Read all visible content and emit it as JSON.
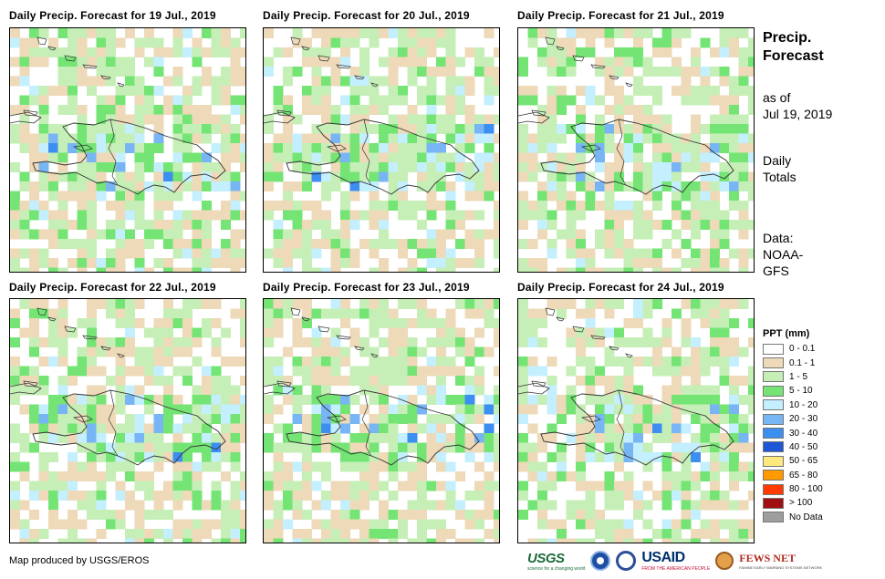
{
  "panels": [
    {
      "title": "Daily Precip. Forecast for 19 Jul., 2019"
    },
    {
      "title": "Daily Precip. Forecast for 20 Jul., 2019"
    },
    {
      "title": "Daily Precip. Forecast for 21 Jul., 2019"
    },
    {
      "title": "Daily Precip. Forecast for 22 Jul., 2019"
    },
    {
      "title": "Daily Precip. Forecast for 23 Jul., 2019"
    },
    {
      "title": "Daily Precip. Forecast for 24 Jul., 2019"
    }
  ],
  "side": {
    "title_line1": "Precip.",
    "title_line2": "Forecast",
    "asof_line1": "as of",
    "asof_line2": "Jul 19, 2019",
    "totals_line1": "Daily",
    "totals_line2": "Totals",
    "data_line1": "Data:",
    "data_line2": "NOAA-",
    "data_line3": "GFS"
  },
  "legend": {
    "title": "PPT (mm)",
    "items": [
      {
        "label": "0 - 0.1",
        "color": "#ffffff"
      },
      {
        "label": "0.1 - 1",
        "color": "#eed9b8"
      },
      {
        "label": "1 - 5",
        "color": "#c5efb6"
      },
      {
        "label": "5 - 10",
        "color": "#74e474"
      },
      {
        "label": "10 - 20",
        "color": "#c4effe"
      },
      {
        "label": "20 - 30",
        "color": "#77b5f5"
      },
      {
        "label": "30 - 40",
        "color": "#3c8ef1"
      },
      {
        "label": "40 - 50",
        "color": "#1e57d6"
      },
      {
        "label": "50 - 65",
        "color": "#ffe97f"
      },
      {
        "label": "65 - 80",
        "color": "#ff9a00"
      },
      {
        "label": "80 - 100",
        "color": "#ff3b00"
      },
      {
        "label": "> 100",
        "color": "#a01010"
      },
      {
        "label": "No Data",
        "color": "#9e9e9e"
      }
    ]
  },
  "credit": "Map produced by USGS/EROS",
  "logos": {
    "usgs": "USGS",
    "usgs_tagline": "science for a changing world",
    "usaid": "USAID",
    "usaid_tagline": "FROM THE AMERICAN PEOPLE",
    "fews": "FEWS NET",
    "fews_tagline": "FAMINE EARLY WARNING SYSTEMS NETWORK"
  }
}
